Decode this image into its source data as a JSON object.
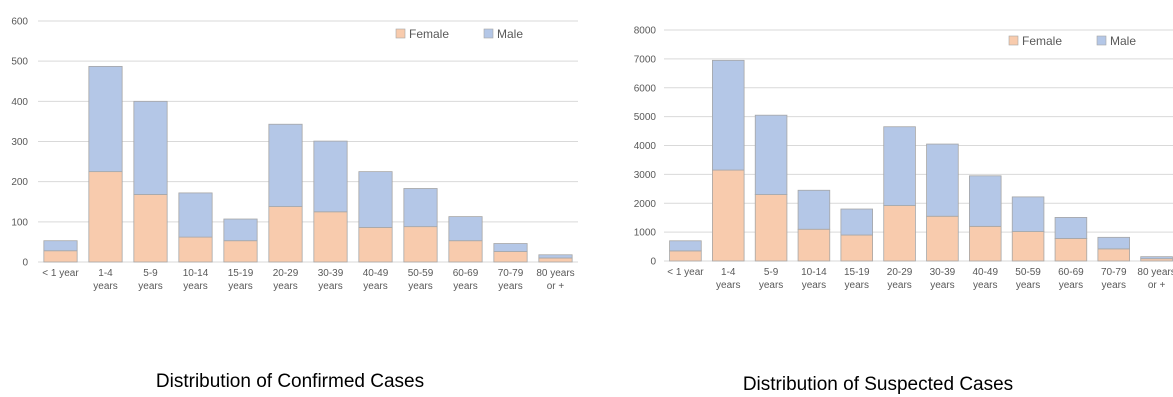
{
  "chart_data": [
    {
      "type": "bar",
      "stacked": true,
      "title": "Distribution of Confirmed Cases",
      "categories": [
        [
          "< 1 year"
        ],
        [
          "1-4",
          "years"
        ],
        [
          "5-9",
          "years"
        ],
        [
          "10-14",
          "years"
        ],
        [
          "15-19",
          "years"
        ],
        [
          "20-29",
          "years"
        ],
        [
          "30-39",
          "years"
        ],
        [
          "40-49",
          "years"
        ],
        [
          "50-59",
          "years"
        ],
        [
          "60-69",
          "years"
        ],
        [
          "70-79",
          "years"
        ],
        [
          "80 years",
          "or +"
        ]
      ],
      "series": [
        {
          "name": "Female",
          "color": "#F8CBAD",
          "values": [
            28,
            225,
            168,
            62,
            53,
            138,
            125,
            86,
            88,
            53,
            26,
            10
          ]
        },
        {
          "name": "Male",
          "color": "#B4C7E7",
          "values": [
            25,
            262,
            232,
            110,
            54,
            205,
            176,
            139,
            95,
            60,
            20,
            8
          ]
        }
      ],
      "ylim": [
        0,
        600
      ],
      "yticks": [
        0,
        100,
        200,
        300,
        400,
        500,
        600
      ],
      "ytick_labels": [
        "0",
        "100",
        "200",
        "300",
        "400",
        "500",
        "600"
      ],
      "grid": true,
      "legend": "top-right"
    },
    {
      "type": "bar",
      "stacked": true,
      "title": "Distribution of Suspected Cases",
      "categories": [
        [
          "< 1 year"
        ],
        [
          "1-4",
          "years"
        ],
        [
          "5-9",
          "years"
        ],
        [
          "10-14",
          "years"
        ],
        [
          "15-19",
          "years"
        ],
        [
          "20-29",
          "years"
        ],
        [
          "30-39",
          "years"
        ],
        [
          "40-49",
          "years"
        ],
        [
          "50-59",
          "years"
        ],
        [
          "60-69",
          "years"
        ],
        [
          "70-79",
          "years"
        ],
        [
          "80 years",
          "or +"
        ]
      ],
      "series": [
        {
          "name": "Female",
          "color": "#F8CBAD",
          "values": [
            350,
            3150,
            2300,
            1100,
            900,
            1920,
            1550,
            1200,
            1020,
            780,
            420,
            80
          ]
        },
        {
          "name": "Male",
          "color": "#B4C7E7",
          "values": [
            350,
            3800,
            2750,
            1350,
            900,
            2730,
            2500,
            1750,
            1200,
            730,
            400,
            70
          ]
        }
      ],
      "ylim": [
        0,
        8000
      ],
      "yticks": [
        0,
        1000,
        2000,
        3000,
        4000,
        5000,
        6000,
        7000,
        8000
      ],
      "ytick_labels": [
        "0",
        "1000",
        "2000",
        "3000",
        "4000",
        "5000",
        "6000",
        "7000",
        "8000"
      ],
      "grid": true,
      "legend": "top-right"
    }
  ]
}
